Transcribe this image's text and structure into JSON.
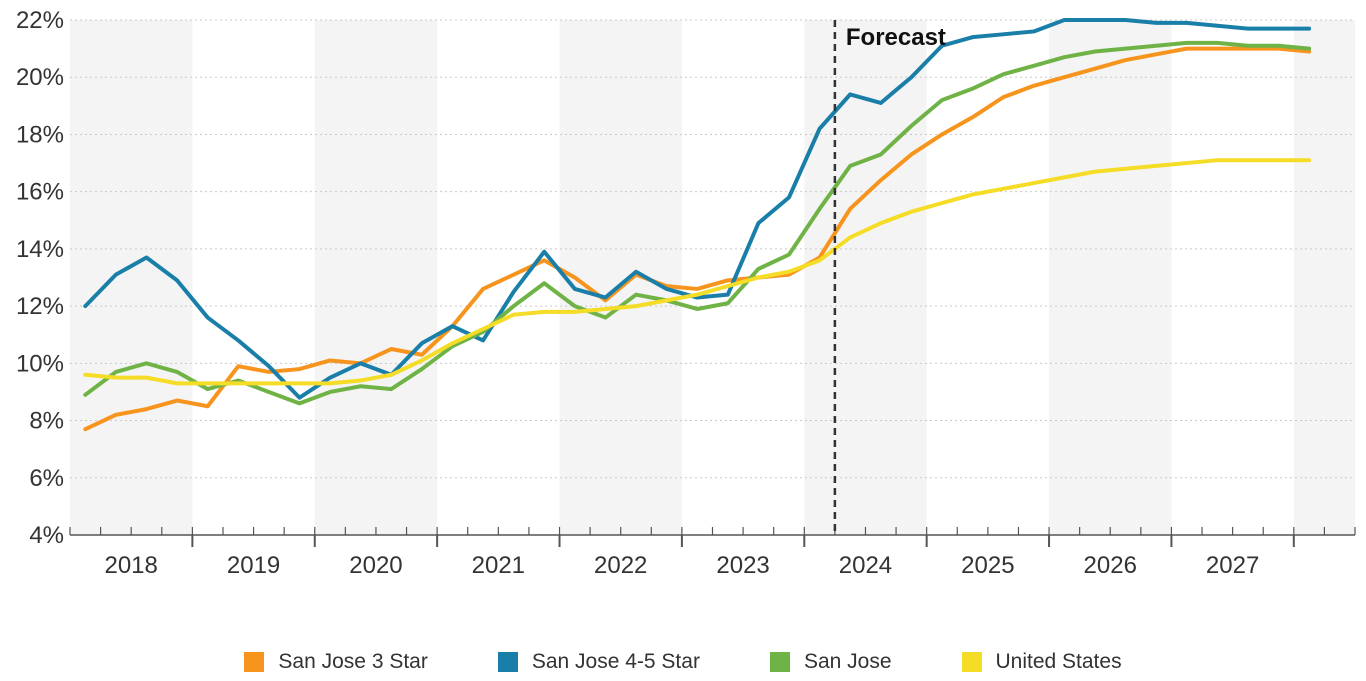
{
  "chart_data": {
    "type": "line",
    "title": "",
    "xlabel": "",
    "ylabel": "",
    "xlim": [
      2017.5,
      2028.0
    ],
    "ylim": [
      4,
      22
    ],
    "y_ticks": [
      4,
      6,
      8,
      10,
      12,
      14,
      16,
      18,
      20,
      22
    ],
    "y_tick_labels": [
      "4%",
      "6%",
      "8%",
      "10%",
      "12%",
      "14%",
      "16%",
      "18%",
      "20%",
      "22%"
    ],
    "year_labels": [
      "2018",
      "2019",
      "2020",
      "2021",
      "2022",
      "2023",
      "2024",
      "2025",
      "2026",
      "2027"
    ],
    "year_label_positions": [
      2018.0,
      2019.0,
      2020.0,
      2021.0,
      2022.0,
      2023.0,
      2024.0,
      2025.0,
      2026.0,
      2027.0
    ],
    "x_quarters": [
      2017.625,
      2017.875,
      2018.125,
      2018.375,
      2018.625,
      2018.875,
      2019.125,
      2019.375,
      2019.625,
      2019.875,
      2020.125,
      2020.375,
      2020.625,
      2020.875,
      2021.125,
      2021.375,
      2021.625,
      2021.875,
      2022.125,
      2022.375,
      2022.625,
      2022.875,
      2023.125,
      2023.375,
      2023.625,
      2023.875,
      2024.125,
      2024.375,
      2024.625,
      2024.875,
      2025.125,
      2025.375,
      2025.625,
      2025.875,
      2026.125,
      2026.375,
      2026.625,
      2026.875,
      2027.125,
      2027.375,
      2027.625
    ],
    "forecast_line_x": 2023.75,
    "forecast_label": "Forecast",
    "grid": "alternating year bands",
    "legend_position": "bottom",
    "series": [
      {
        "name": "San Jose 3 Star",
        "color": "#F7941D",
        "values": [
          7.7,
          8.2,
          8.4,
          8.7,
          8.5,
          9.9,
          9.7,
          9.8,
          10.1,
          10.0,
          10.5,
          10.3,
          11.3,
          12.6,
          13.1,
          13.6,
          13.0,
          12.2,
          13.1,
          12.7,
          12.6,
          12.9,
          13.0,
          13.1,
          13.7,
          15.4,
          16.4,
          17.3,
          18.0,
          18.6,
          19.3,
          19.7,
          20.0,
          20.3,
          20.6,
          20.8,
          21.0,
          21.0,
          21.0,
          21.0,
          20.9
        ]
      },
      {
        "name": "San Jose 4-5 Star",
        "color": "#1A7FA8",
        "values": [
          12.0,
          13.1,
          13.7,
          12.9,
          11.6,
          10.8,
          9.9,
          8.8,
          9.5,
          10.0,
          9.6,
          10.7,
          11.3,
          10.8,
          12.5,
          13.9,
          12.6,
          12.3,
          13.2,
          12.6,
          12.3,
          12.4,
          14.9,
          15.8,
          18.2,
          19.4,
          19.1,
          20.0,
          21.1,
          21.4,
          21.5,
          21.6,
          22.0,
          22.0,
          22.0,
          21.9,
          21.9,
          21.8,
          21.7,
          21.7,
          21.7
        ]
      },
      {
        "name": "San Jose",
        "color": "#6FB346",
        "values": [
          8.9,
          9.7,
          10.0,
          9.7,
          9.1,
          9.4,
          9.0,
          8.6,
          9.0,
          9.2,
          9.1,
          9.8,
          10.6,
          11.1,
          12.0,
          12.8,
          12.0,
          11.6,
          12.4,
          12.2,
          11.9,
          12.1,
          13.3,
          13.8,
          15.4,
          16.9,
          17.3,
          18.3,
          19.2,
          19.6,
          20.1,
          20.4,
          20.7,
          20.9,
          21.0,
          21.1,
          21.2,
          21.2,
          21.1,
          21.1,
          21.0
        ]
      },
      {
        "name": "United States",
        "color": "#F5DC26",
        "values": [
          9.6,
          9.5,
          9.5,
          9.3,
          9.3,
          9.3,
          9.3,
          9.3,
          9.3,
          9.4,
          9.6,
          10.1,
          10.7,
          11.2,
          11.7,
          11.8,
          11.8,
          11.9,
          12.0,
          12.2,
          12.4,
          12.7,
          13.0,
          13.2,
          13.6,
          14.4,
          14.9,
          15.3,
          15.6,
          15.9,
          16.1,
          16.3,
          16.5,
          16.7,
          16.8,
          16.9,
          17.0,
          17.1,
          17.1,
          17.1,
          17.1
        ]
      }
    ]
  }
}
